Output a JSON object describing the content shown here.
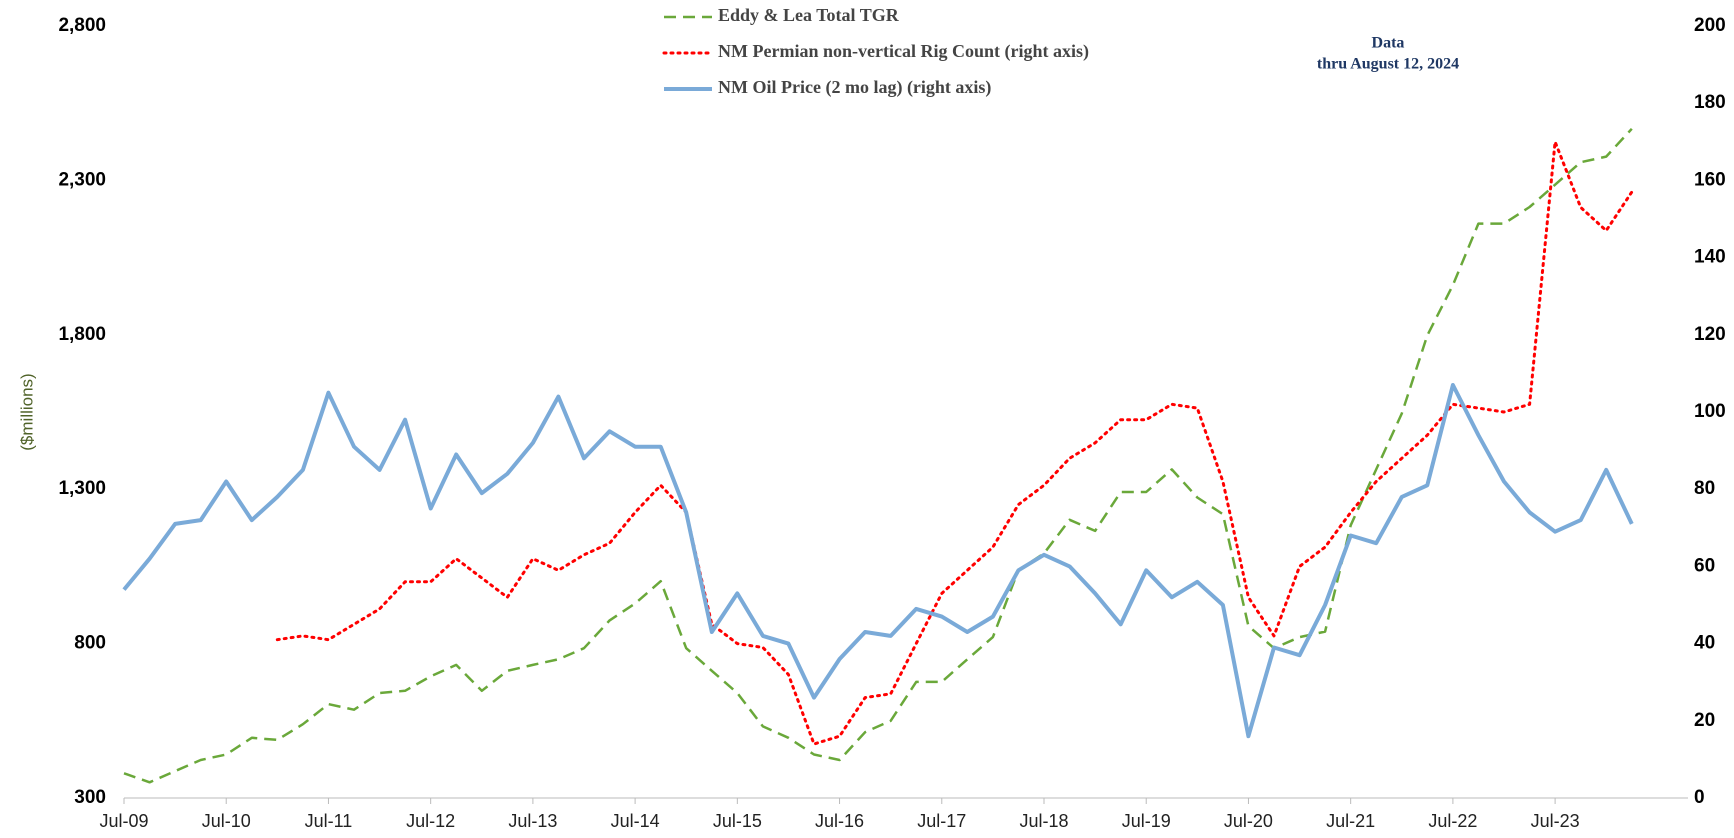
{
  "chart_data": {
    "type": "line",
    "y_label": "($millions)",
    "annotation": [
      "Data",
      "thru August 12, 2024"
    ],
    "x": [
      2009.5,
      2009.75,
      2010.0,
      2010.25,
      2010.5,
      2010.75,
      2011.0,
      2011.25,
      2011.5,
      2011.75,
      2012.0,
      2012.25,
      2012.5,
      2012.75,
      2013.0,
      2013.25,
      2013.5,
      2013.75,
      2014.0,
      2014.25,
      2014.5,
      2014.75,
      2015.0,
      2015.25,
      2015.5,
      2015.75,
      2016.0,
      2016.25,
      2016.5,
      2016.75,
      2017.0,
      2017.25,
      2017.5,
      2017.75,
      2018.0,
      2018.25,
      2018.5,
      2018.75,
      2019.0,
      2019.25,
      2019.5,
      2019.75,
      2020.0,
      2020.25,
      2020.5,
      2020.75,
      2021.0,
      2021.25,
      2021.5,
      2021.75,
      2022.0,
      2022.25,
      2022.5,
      2022.75,
      2023.0,
      2023.25,
      2023.5,
      2023.75,
      2024.0,
      2024.25,
      2024.5
    ],
    "series": [
      {
        "name": "Eddy & Lea Total TGR",
        "color": "#6aa83a",
        "style": "dashed",
        "axis": "y",
        "values": [
          380,
          351,
          387,
          423,
          441,
          495,
          488,
          539,
          604,
          586,
          640,
          647,
          694,
          731,
          647,
          712,
          731,
          749,
          785,
          875,
          930,
          1002,
          785,
          712,
          640,
          532,
          495,
          441,
          423,
          513,
          550,
          676,
          676,
          749,
          821,
          1038,
          1092,
          1201,
          1165,
          1291,
          1291,
          1364,
          1273,
          1219,
          857,
          785,
          821,
          839,
          1183,
          1364,
          1545,
          1798,
          1961,
          2160,
          2160,
          2214,
          2286,
          2359,
          2377,
          2467,
          null
        ]
      },
      {
        "name": "NM Permian non-vertical Rig Count (right axis)",
        "color": "#ff0000",
        "style": "dotted",
        "axis": "y2",
        "values": [
          null,
          null,
          null,
          null,
          null,
          null,
          41,
          42,
          41,
          45,
          49,
          56,
          56,
          62,
          57,
          52,
          62,
          59,
          63,
          66,
          74,
          81,
          74,
          45,
          40,
          39,
          32,
          14,
          16,
          26,
          27,
          40,
          53,
          59,
          65,
          76,
          81,
          88,
          92,
          98,
          98,
          102,
          101,
          82,
          52,
          42,
          60,
          65,
          74,
          82,
          88,
          94,
          102,
          101,
          100,
          102,
          170,
          153,
          147,
          157,
          null
        ]
      },
      {
        "name": "NM Oil Price (2 mo lag) (right axis)",
        "color": "#7aaad8",
        "style": "solid",
        "axis": "y2",
        "values": [
          54,
          62,
          71,
          72,
          82,
          72,
          78,
          85,
          105,
          91,
          85,
          98,
          75,
          89,
          79,
          84,
          92,
          104,
          88,
          95,
          91,
          91,
          74,
          43,
          53,
          42,
          40,
          26,
          36,
          43,
          42,
          49,
          47,
          43,
          47,
          59,
          63,
          60,
          53,
          45,
          59,
          52,
          56,
          50,
          16,
          39,
          37,
          50,
          68,
          66,
          78,
          81,
          107,
          94,
          82,
          74,
          69,
          72,
          85,
          71,
          null
        ]
      }
    ],
    "xlim": [
      2009.5,
      2024.8
    ],
    "xticks": [
      {
        "value": 2009.5,
        "label": "Jul-09"
      },
      {
        "value": 2010.5,
        "label": "Jul-10"
      },
      {
        "value": 2011.5,
        "label": "Jul-11"
      },
      {
        "value": 2012.5,
        "label": "Jul-12"
      },
      {
        "value": 2013.5,
        "label": "Jul-13"
      },
      {
        "value": 2014.5,
        "label": "Jul-14"
      },
      {
        "value": 2015.5,
        "label": "Jul-15"
      },
      {
        "value": 2016.5,
        "label": "Jul-16"
      },
      {
        "value": 2017.5,
        "label": "Jul-17"
      },
      {
        "value": 2018.5,
        "label": "Jul-18"
      },
      {
        "value": 2019.5,
        "label": "Jul-19"
      },
      {
        "value": 2020.5,
        "label": "Jul-20"
      },
      {
        "value": 2021.5,
        "label": "Jul-21"
      },
      {
        "value": 2022.5,
        "label": "Jul-22"
      },
      {
        "value": 2023.5,
        "label": "Jul-23"
      }
    ],
    "ylim": [
      300,
      2800
    ],
    "yticks": [
      {
        "value": 300,
        "label": "300"
      },
      {
        "value": 800,
        "label": "800"
      },
      {
        "value": 1300,
        "label": "1,300"
      },
      {
        "value": 1800,
        "label": "1,800"
      },
      {
        "value": 2300,
        "label": "2,300"
      },
      {
        "value": 2800,
        "label": "2,800"
      }
    ],
    "y2lim": [
      0,
      200
    ],
    "y2ticks": [
      0,
      20,
      40,
      60,
      80,
      100,
      120,
      140,
      160,
      180,
      200
    ],
    "grid": false
  }
}
